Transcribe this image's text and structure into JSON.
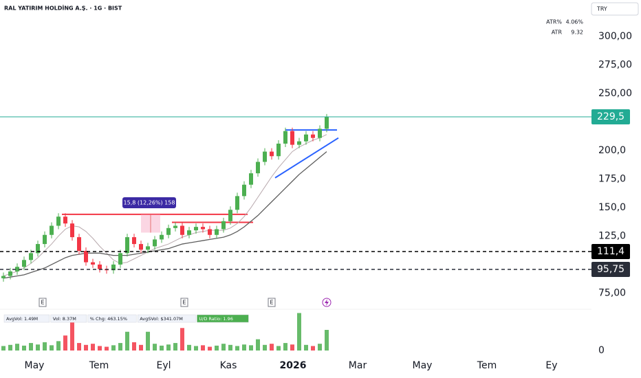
{
  "header": {
    "title": "RAL YATIRIM HOLDİNG A.Ş. · 1G · BIST",
    "currency": "TRY"
  },
  "chart_data": {
    "type": "candlestick",
    "open": [
      88,
      90,
      94,
      98,
      104,
      110,
      118,
      126,
      134,
      142,
      136,
      124,
      112,
      102,
      100,
      96,
      95,
      100,
      110,
      124,
      118,
      113,
      116,
      122,
      126,
      132,
      134,
      126,
      130,
      133,
      131,
      126,
      131,
      138,
      148,
      160,
      170,
      180,
      190,
      199,
      195,
      206,
      217,
      205,
      208,
      214,
      211,
      219
    ],
    "high": [
      93,
      97,
      101,
      107,
      113,
      121,
      129,
      137,
      145,
      145,
      139,
      127,
      115,
      105,
      103,
      99,
      103,
      113,
      127,
      127,
      121,
      119,
      125,
      129,
      135,
      137,
      137,
      133,
      136,
      136,
      134,
      134,
      141,
      151,
      163,
      173,
      183,
      193,
      202,
      202,
      209,
      220,
      220,
      211,
      217,
      217,
      222,
      232
    ],
    "low": [
      85,
      87,
      91,
      95,
      101,
      107,
      115,
      123,
      131,
      133,
      121,
      109,
      99,
      97,
      93,
      92,
      92,
      97,
      107,
      115,
      110,
      110,
      113,
      119,
      123,
      129,
      123,
      123,
      127,
      128,
      123,
      123,
      128,
      135,
      145,
      157,
      167,
      177,
      187,
      192,
      192,
      203,
      202,
      202,
      205,
      208,
      208,
      216
    ],
    "close": [
      90,
      94,
      98,
      104,
      110,
      118,
      126,
      134,
      142,
      136,
      124,
      112,
      102,
      100,
      96,
      95,
      100,
      110,
      124,
      118,
      113,
      116,
      122,
      126,
      132,
      134,
      126,
      130,
      133,
      131,
      126,
      131,
      138,
      148,
      160,
      170,
      180,
      190,
      199,
      195,
      206,
      217,
      205,
      208,
      214,
      211,
      219,
      229.5
    ],
    "color_up": "#4caf50",
    "color_down": "#f23645",
    "ma_series": [
      {
        "color": "#b8a9ad",
        "values": [
          90,
          92,
          94,
          97,
          101,
          106,
          112,
          118,
          125,
          131,
          134,
          133,
          129,
          123,
          116,
          110,
          104,
          101,
          102,
          105,
          108,
          111,
          114,
          116,
          118,
          121,
          124,
          126,
          128,
          129,
          130,
          130,
          130,
          132,
          136,
          142,
          150,
          159,
          168,
          177,
          185,
          192,
          199,
          203,
          206,
          209,
          211,
          214
        ]
      },
      {
        "color": "#5d5d5d",
        "values": [
          88,
          89,
          90,
          91,
          93,
          95,
          97,
          100,
          103,
          106,
          108,
          109,
          110,
          110,
          110,
          109,
          108,
          108,
          108,
          109,
          110,
          111,
          112,
          113,
          114,
          116,
          118,
          119,
          120,
          121,
          122,
          123,
          124,
          126,
          129,
          133,
          138,
          143,
          149,
          155,
          161,
          167,
          173,
          179,
          184,
          189,
          194,
          199
        ]
      }
    ],
    "ylim": [
      60.8,
      331.9
    ],
    "yticks": [
      {
        "value": 300,
        "label": "300,00"
      },
      {
        "value": 275,
        "label": "275,00"
      },
      {
        "value": 250,
        "label": "250,00"
      },
      {
        "value": 200,
        "label": "200,0"
      },
      {
        "value": 175,
        "label": "175,0"
      },
      {
        "value": 150,
        "label": "150,0"
      },
      {
        "value": 125,
        "label": "125,0"
      },
      {
        "value": 75,
        "label": "75,00"
      }
    ],
    "xticks": [
      "May",
      "Tem",
      "Eyl",
      "Kas",
      "2026",
      "Mar",
      "May",
      "Tem",
      "Ey"
    ],
    "price_levels": [
      {
        "value": 229.5,
        "label": "229,5",
        "color": "#22ab94",
        "style": "solid"
      },
      {
        "value": 111.4,
        "label": "111,4",
        "color": "#000000",
        "style": "dashed"
      },
      {
        "value": 95.75,
        "label": "95,75",
        "color": "#2a2e39",
        "style": "dashed"
      }
    ],
    "levels": [
      {
        "value": 144,
        "color": "#f23645"
      },
      {
        "value": 137,
        "color": "#f23645"
      },
      {
        "value": 218,
        "color": "#2962ff"
      }
    ],
    "trendline": {
      "values": [
        176,
        211
      ],
      "color": "#2962ff"
    },
    "measure": {
      "range": [
        128,
        143.8
      ],
      "label": "15,8 (12,26%) 158"
    },
    "indicators": [
      {
        "label": "ATR%",
        "value": 4.06,
        "value_label": "4.06%"
      },
      {
        "label": "ATR",
        "value": 9.32
      }
    ],
    "events": [
      "E",
      "E",
      "E"
    ],
    "volume": {
      "values": [
        1.2,
        1.5,
        1.8,
        1.3,
        2.0,
        1.6,
        2.2,
        1.4,
        2.5,
        4.0,
        7.5,
        2.0,
        1.5,
        1.8,
        1.2,
        1.0,
        1.4,
        2.0,
        5.0,
        2.2,
        1.5,
        5.0,
        1.8,
        1.3,
        1.6,
        2.0,
        6.0,
        1.5,
        1.2,
        1.4,
        1.0,
        1.3,
        1.8,
        1.5,
        1.2,
        1.6,
        1.4,
        3.0,
        1.5,
        1.8,
        1.2,
        2.0,
        1.6,
        10.0,
        1.5,
        1.2,
        1.8,
        5.5
      ],
      "ylim": [
        0,
        11
      ],
      "yticks": [
        0
      ],
      "legend": [
        "AvgVol: 1.49M",
        "Vol: 8.37M",
        "% Chg: 463.15%",
        "AvgSVol: $341.07M",
        "U/D Ratio: 1.96"
      ]
    }
  }
}
